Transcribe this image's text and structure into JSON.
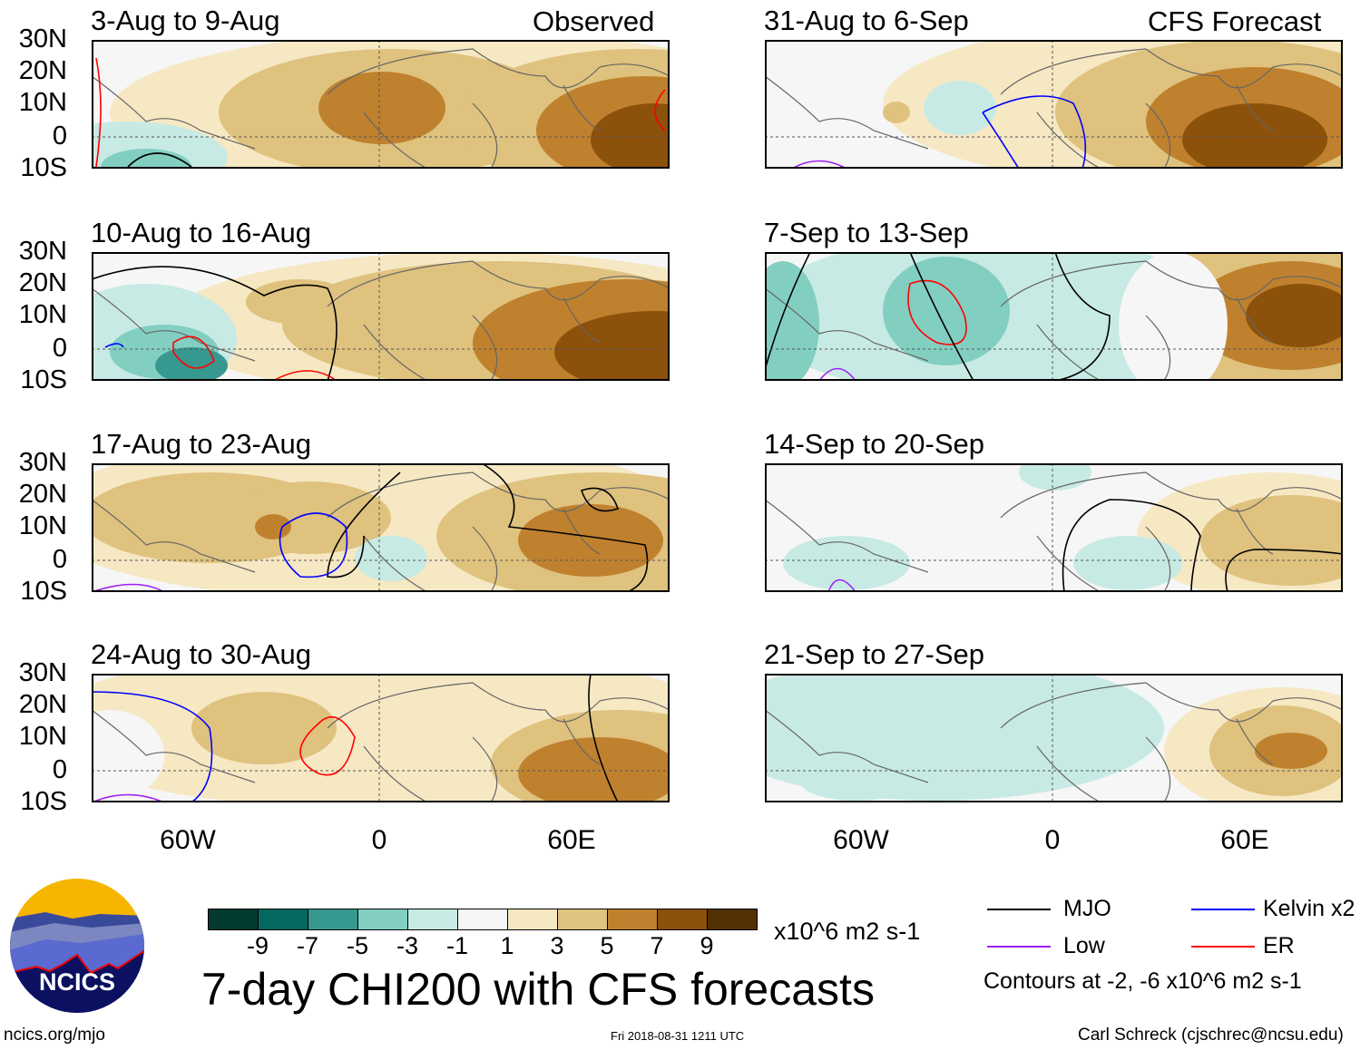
{
  "chart_data": {
    "type": "heatmap",
    "title": "7-day CHI200 with CFS forecasts",
    "units": "x10^6 m2 s-1",
    "column_headers": [
      "Observed",
      "CFS Forecast"
    ],
    "lat_ticks": [
      "30N",
      "20N",
      "10N",
      "0",
      "10S"
    ],
    "lon_ticks": [
      "60W",
      "0",
      "60E"
    ],
    "lat_range": [
      -10,
      30
    ],
    "lon_range": [
      -90,
      90
    ],
    "panels": [
      {
        "label": "3-Aug to 9-Aug",
        "column": "Observed"
      },
      {
        "label": "10-Aug to 16-Aug",
        "column": "Observed"
      },
      {
        "label": "17-Aug to 23-Aug",
        "column": "Observed"
      },
      {
        "label": "24-Aug to 30-Aug",
        "column": "Observed"
      },
      {
        "label": "31-Aug to 6-Sep",
        "column": "CFS Forecast"
      },
      {
        "label": "7-Sep to 13-Sep",
        "column": "CFS Forecast"
      },
      {
        "label": "14-Sep to 20-Sep",
        "column": "CFS Forecast"
      },
      {
        "label": "21-Sep to 27-Sep",
        "column": "CFS Forecast"
      }
    ],
    "colorbar": {
      "ticks": [
        "-9",
        "-7",
        "-5",
        "-3",
        "-1",
        "1",
        "3",
        "5",
        "7",
        "9"
      ],
      "colors": [
        "#033b31",
        "#066860",
        "#37988f",
        "#82cfc2",
        "#c8eae4",
        "#f6f6f6",
        "#f6e8c3",
        "#dfc27e",
        "#bf812e",
        "#8c510b",
        "#533105"
      ]
    },
    "legend": [
      {
        "label": "MJO",
        "color": "#000000"
      },
      {
        "label": "Kelvin x2",
        "color": "#0000ff"
      },
      {
        "label": "Low",
        "color": "#a020f0"
      },
      {
        "label": "ER",
        "color": "#ff0000"
      }
    ],
    "contour_note": "Contours at -2, -6 x10^6 m2 s-1"
  },
  "footer": {
    "logo_text": "NCICS",
    "url": "ncics.org/mjo",
    "timestamp": "Fri 2018-08-31 1211 UTC",
    "author": "Carl Schreck (cjschrec@ncsu.edu)"
  }
}
